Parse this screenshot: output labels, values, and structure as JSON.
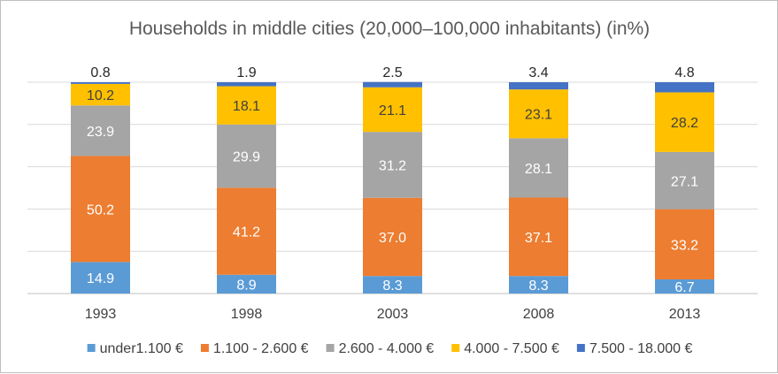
{
  "chart_data": {
    "type": "bar",
    "stacked": true,
    "title": "Households in middle cities (20,000–100,000 inhabitants) (in%)",
    "xlabel": "",
    "ylabel": "",
    "ylim": [
      0,
      100
    ],
    "grid": true,
    "legend_position": "bottom",
    "categories": [
      "1993",
      "1998",
      "2003",
      "2008",
      "2013"
    ],
    "series": [
      {
        "name": "under1.100 €",
        "color": "#5b9bd5",
        "label_color": "#ffffff",
        "label_position": "inside",
        "values": [
          14.9,
          8.9,
          8.3,
          8.3,
          6.7
        ],
        "labels": [
          "14.9",
          "8.9",
          "8.3",
          "8.3",
          "6.7"
        ]
      },
      {
        "name": "1.100 - 2.600 €",
        "color": "#ed7d31",
        "label_color": "#ffffff",
        "label_position": "inside",
        "values": [
          50.2,
          41.2,
          37.0,
          37.1,
          33.2
        ],
        "labels": [
          "50.2",
          "41.2",
          "37.0",
          "37.1",
          "33.2"
        ]
      },
      {
        "name": "2.600 - 4.000 €",
        "color": "#a5a5a5",
        "label_color": "#ffffff",
        "label_position": "inside",
        "values": [
          23.9,
          29.9,
          31.2,
          28.1,
          27.1
        ],
        "labels": [
          "23.9",
          "29.9",
          "31.2",
          "28.1",
          "27.1"
        ]
      },
      {
        "name": "4.000 - 7.500 €",
        "color": "#ffc000",
        "label_color": "#404040",
        "label_position": "inside",
        "values": [
          10.2,
          18.1,
          21.1,
          23.1,
          28.2
        ],
        "labels": [
          "10.2",
          "18.1",
          "21.1",
          "23.1",
          "28.2"
        ]
      },
      {
        "name": "7.500 - 18.000 €",
        "color": "#4472c4",
        "label_color": "#262626",
        "label_position": "above",
        "values": [
          0.8,
          1.9,
          2.5,
          3.4,
          4.8
        ],
        "labels": [
          "0.8",
          "1.9",
          "2.5",
          "3.4",
          "4.8"
        ]
      }
    ]
  }
}
